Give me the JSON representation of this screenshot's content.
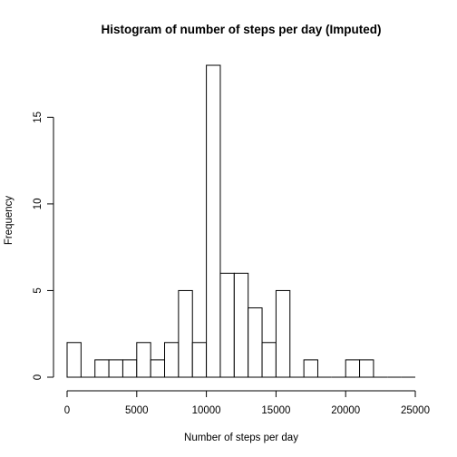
{
  "chart_data": {
    "type": "bar",
    "title": "Histogram of number of steps per day (Imputed)",
    "xlabel": "Number of steps per day",
    "ylabel": "Frequency",
    "bin_width": 1000,
    "bin_starts": [
      0,
      1000,
      2000,
      3000,
      4000,
      5000,
      6000,
      7000,
      8000,
      9000,
      10000,
      11000,
      12000,
      13000,
      14000,
      15000,
      16000,
      17000,
      18000,
      19000,
      20000,
      21000,
      22000,
      23000,
      24000
    ],
    "values": [
      2,
      0,
      1,
      1,
      1,
      2,
      1,
      2,
      5,
      2,
      18,
      6,
      6,
      4,
      2,
      5,
      0,
      1,
      0,
      0,
      1,
      1,
      0,
      0,
      0
    ],
    "xlim": [
      0,
      25000
    ],
    "ylim": [
      0,
      18
    ],
    "xticks": [
      0,
      5000,
      10000,
      15000,
      20000,
      25000
    ],
    "xtick_labels": [
      "0",
      "5000",
      "10000",
      "15000",
      "20000",
      "25000"
    ],
    "yticks": [
      0,
      5,
      10,
      15
    ],
    "ytick_labels": [
      "0",
      "5",
      "10",
      "15"
    ],
    "grid": false,
    "legend": "none"
  }
}
